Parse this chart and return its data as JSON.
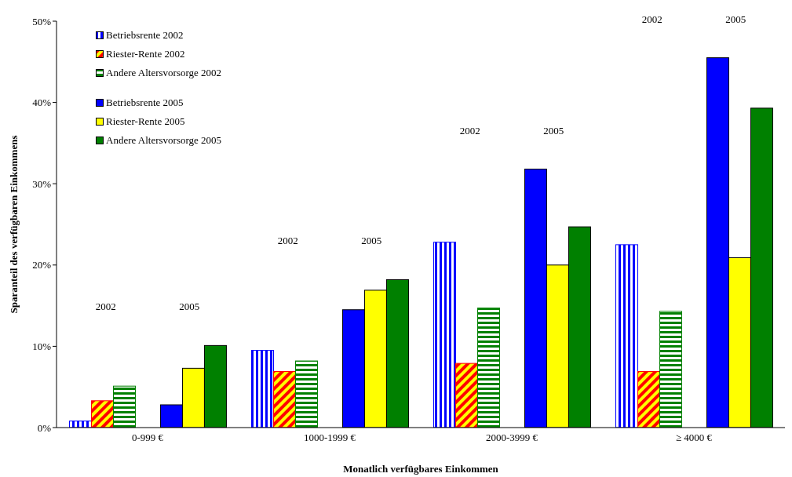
{
  "chart_data": {
    "type": "bar",
    "xlabel": "Monatlich verfügbares Einkommen",
    "ylabel": "Sparanteil des verfügbaren Einkommens",
    "categories": [
      "0-999 €",
      "1000-1999 €",
      "2000-3999 €",
      "≥ 4000 €"
    ],
    "series": [
      {
        "name": "Betriebsrente 2002",
        "color": "#0000ff",
        "values": [
          0.8,
          9.5,
          22.8,
          22.5
        ]
      },
      {
        "name": "Riester-Rente 2002",
        "color": "#ff0000",
        "values": [
          3.3,
          6.9,
          7.9,
          6.9
        ]
      },
      {
        "name": "Andere Altersvorsorge 2002",
        "color": "#008000",
        "values": [
          5.1,
          8.2,
          14.7,
          14.3
        ]
      },
      {
        "name": "Betriebsrente 2005",
        "color": "#0000ff",
        "values": [
          2.8,
          14.5,
          31.8,
          45.5
        ]
      },
      {
        "name": "Riester-Rente 2005",
        "color": "#ffff00",
        "values": [
          7.3,
          16.9,
          20.0,
          20.9
        ]
      },
      {
        "name": "Andere Altersvorsorge 2005",
        "color": "#008000",
        "values": [
          10.1,
          18.2,
          24.7,
          39.3
        ]
      }
    ],
    "ylim": [
      0,
      50
    ],
    "yticks": [
      {
        "value": 0,
        "label": "0%"
      },
      {
        "value": 10,
        "label": "10%"
      },
      {
        "value": 20,
        "label": "20%"
      },
      {
        "value": 30,
        "label": "30%"
      },
      {
        "value": 40,
        "label": "40%"
      },
      {
        "value": 50,
        "label": "50%"
      }
    ],
    "annotations": [
      "2002",
      "2005",
      "2002",
      "2005",
      "2002",
      "2005",
      "2002",
      "2005"
    ],
    "grid": false,
    "legend": "top left"
  }
}
